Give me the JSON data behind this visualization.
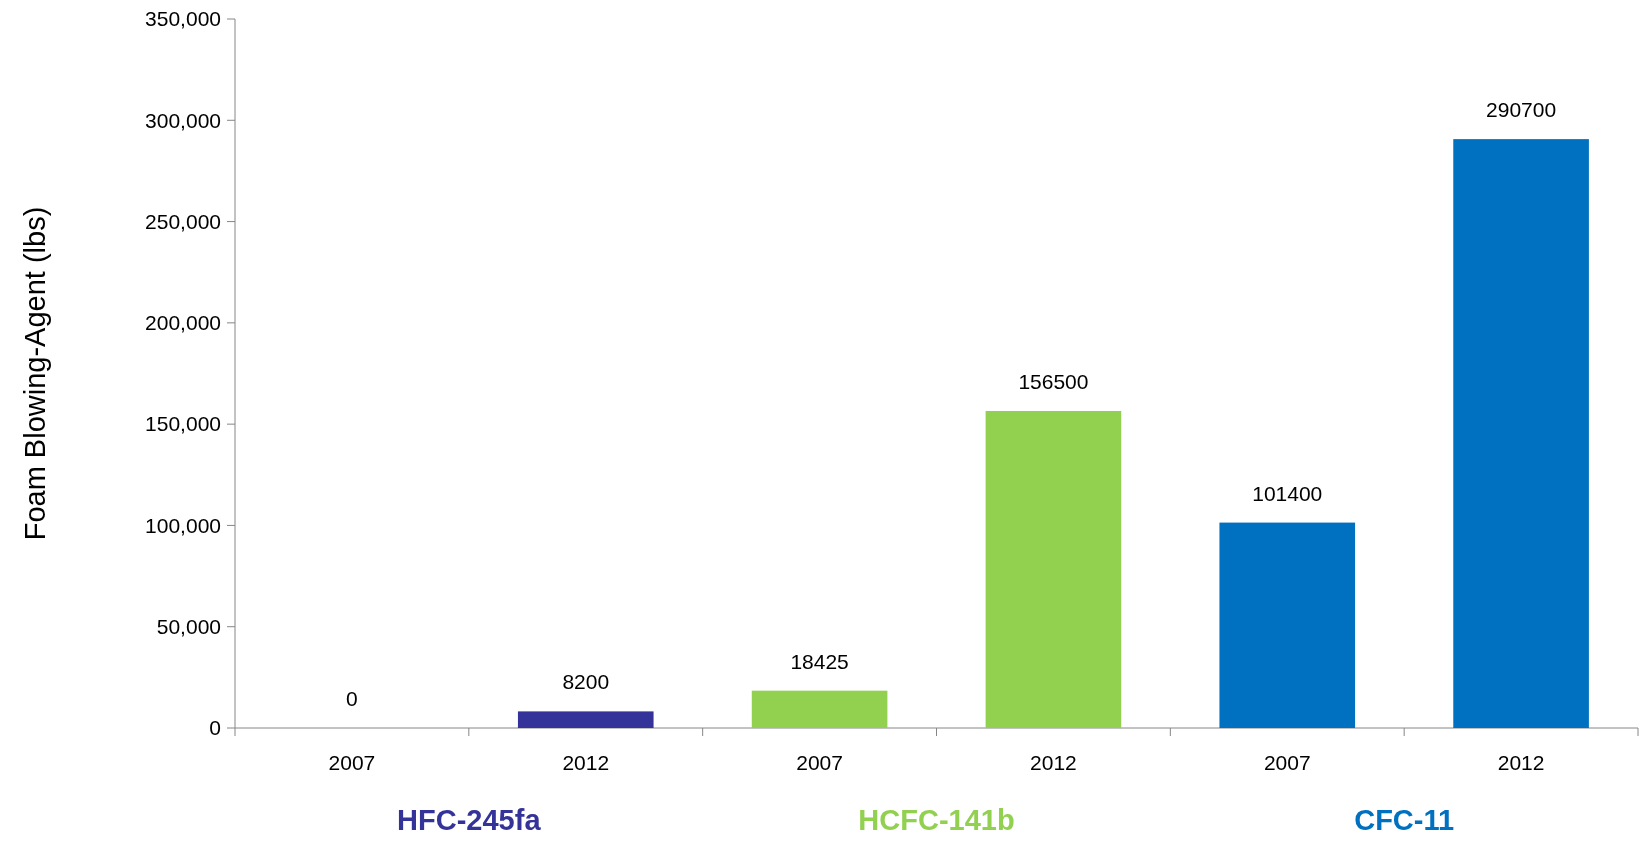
{
  "chart_data": {
    "type": "bar",
    "ylabel": "Foam Blowing-Agent (lbs)",
    "categories": [
      "2007",
      "2012",
      "2007",
      "2012",
      "2007",
      "2012"
    ],
    "series": [
      {
        "name": "HFC-245fa",
        "color": "#333399",
        "values": [
          0,
          8200,
          null,
          null,
          null,
          null
        ]
      },
      {
        "name": "HCFC-141b",
        "color": "#92d050",
        "values": [
          null,
          null,
          18425,
          156500,
          null,
          null
        ]
      },
      {
        "name": "CFC-11",
        "color": "#0070c0",
        "values": [
          null,
          null,
          null,
          null,
          101400,
          290700
        ]
      }
    ],
    "ylim": [
      0,
      350000
    ],
    "yticks": [
      {
        "value": 0,
        "label": "0"
      },
      {
        "value": 50000,
        "label": "50,000"
      },
      {
        "value": 100000,
        "label": "100,000"
      },
      {
        "value": 150000,
        "label": "150,000"
      },
      {
        "value": 200000,
        "label": "200,000"
      },
      {
        "value": 250000,
        "label": "250,000"
      },
      {
        "value": 300000,
        "label": "300,000"
      },
      {
        "value": 350000,
        "label": "350,000"
      }
    ],
    "data_labels": true,
    "grid": false,
    "legend": "bottom"
  }
}
